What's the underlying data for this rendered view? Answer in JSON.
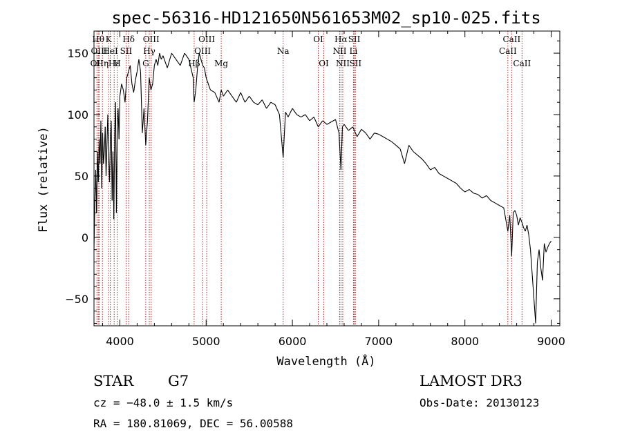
{
  "chart_data": {
    "type": "line",
    "title": "spec-56316-HD121650N561653M02_sp10-025.fits",
    "xlabel": "Wavelength (Å)",
    "ylabel": "Flux (relative)",
    "xlim": [
      3700,
      9100
    ],
    "ylim": [
      -72,
      168
    ],
    "x_ticks": [
      4000,
      5000,
      6000,
      7000,
      8000,
      9000
    ],
    "x_tick_labels": [
      "4000",
      "5000",
      "6000",
      "7000",
      "8000",
      "9000"
    ],
    "y_ticks": [
      -50,
      0,
      50,
      100,
      150
    ],
    "y_tick_labels": [
      "−50",
      "0",
      "50",
      "100",
      "150"
    ],
    "grid": false,
    "line_color": "#000000",
    "marker_color": "#b22222",
    "series": [
      {
        "x": [
          3700,
          3710,
          3720,
          3730,
          3740,
          3750,
          3760,
          3770,
          3780,
          3790,
          3800,
          3810,
          3820,
          3830,
          3840,
          3850,
          3860,
          3870,
          3880,
          3890,
          3900,
          3910,
          3920,
          3930,
          3940,
          3950,
          3960,
          3970,
          3980,
          3990,
          4000,
          4020,
          4040,
          4060,
          4080,
          4100,
          4120,
          4140,
          4160,
          4180,
          4200,
          4220,
          4240,
          4260,
          4280,
          4300,
          4320,
          4340,
          4360,
          4380,
          4400,
          4420,
          4440,
          4460,
          4480,
          4500,
          4550,
          4600,
          4650,
          4700,
          4750,
          4800,
          4850,
          4861,
          4880,
          4900,
          4920,
          4940,
          4960,
          4980,
          5000,
          5050,
          5100,
          5150,
          5175,
          5200,
          5250,
          5300,
          5350,
          5400,
          5450,
          5500,
          5550,
          5600,
          5650,
          5700,
          5750,
          5800,
          5850,
          5893,
          5920,
          5950,
          6000,
          6050,
          6100,
          6150,
          6200,
          6250,
          6300,
          6350,
          6400,
          6450,
          6500,
          6540,
          6563,
          6580,
          6600,
          6650,
          6700,
          6750,
          6800,
          6850,
          6900,
          6950,
          7000,
          7050,
          7100,
          7150,
          7200,
          7250,
          7300,
          7350,
          7400,
          7450,
          7500,
          7550,
          7600,
          7650,
          7700,
          7750,
          7800,
          7850,
          7900,
          7950,
          8000,
          8050,
          8100,
          8150,
          8200,
          8250,
          8300,
          8350,
          8400,
          8450,
          8498,
          8520,
          8542,
          8560,
          8580,
          8600,
          8620,
          8640,
          8662,
          8680,
          8700,
          8720,
          8740,
          8760,
          8780,
          8800,
          8820,
          8840,
          8860,
          8880,
          8900,
          8920,
          8940,
          8960,
          8980,
          9000
        ],
        "y": [
          -10,
          30,
          55,
          20,
          70,
          45,
          80,
          60,
          95,
          40,
          85,
          60,
          70,
          90,
          50,
          75,
          100,
          65,
          45,
          80,
          95,
          30,
          70,
          15,
          85,
          110,
          20,
          90,
          105,
          80,
          115,
          125,
          120,
          110,
          130,
          135,
          140,
          125,
          118,
          128,
          135,
          145,
          135,
          85,
          105,
          75,
          95,
          130,
          120,
          125,
          140,
          145,
          140,
          150,
          145,
          148,
          138,
          150,
          145,
          140,
          150,
          145,
          130,
          110,
          120,
          138,
          150,
          145,
          140,
          138,
          130,
          120,
          118,
          110,
          120,
          115,
          120,
          115,
          110,
          118,
          110,
          115,
          110,
          108,
          112,
          105,
          110,
          108,
          100,
          65,
          102,
          98,
          105,
          100,
          98,
          100,
          95,
          98,
          90,
          95,
          92,
          94,
          96,
          85,
          55,
          90,
          92,
          87,
          90,
          82,
          88,
          85,
          80,
          85,
          84,
          82,
          80,
          78,
          75,
          72,
          60,
          75,
          70,
          67,
          64,
          60,
          55,
          57,
          52,
          50,
          48,
          46,
          44,
          40,
          37,
          39,
          36,
          35,
          32,
          34,
          30,
          28,
          26,
          24,
          5,
          18,
          -15,
          20,
          22,
          18,
          10,
          16,
          12,
          8,
          5,
          10,
          2,
          -10,
          -30,
          -50,
          -70,
          -20,
          -10,
          -25,
          -35,
          -5,
          -12,
          -8,
          -5,
          -3
        ]
      }
    ],
    "line_markers": [
      {
        "x": 3734,
        "label": "OII",
        "row": 3
      },
      {
        "x": 3750,
        "label": "Hθ",
        "row": 1
      },
      {
        "x": 3760,
        "label": "OIII",
        "row": 2
      },
      {
        "x": 3798,
        "label": "Hη",
        "row": 3
      },
      {
        "x": 3869,
        "label": "K",
        "row": 1
      },
      {
        "x": 3889,
        "label": "HeI",
        "row": 2
      },
      {
        "x": 3934,
        "label": "Hε",
        "row": 3
      },
      {
        "x": 3969,
        "label": "H",
        "row": 3
      },
      {
        "x": 4072,
        "label": "SII",
        "row": 2
      },
      {
        "x": 4102,
        "label": "Hδ",
        "row": 1
      },
      {
        "x": 4300,
        "label": "G",
        "row": 3
      },
      {
        "x": 4341,
        "label": "Hγ",
        "row": 2
      },
      {
        "x": 4363,
        "label": "OIII",
        "row": 1
      },
      {
        "x": 4861,
        "label": "Hβ",
        "row": 3
      },
      {
        "x": 4959,
        "label": "OIII",
        "row": 2
      },
      {
        "x": 5007,
        "label": "OIII",
        "row": 1
      },
      {
        "x": 5175,
        "label": "Mg",
        "row": 3
      },
      {
        "x": 5893,
        "label": "Na",
        "row": 2
      },
      {
        "x": 6300,
        "label": "OI",
        "row": 1
      },
      {
        "x": 6364,
        "label": "OI",
        "row": 3
      },
      {
        "x": 6548,
        "label": "NII",
        "row": 2
      },
      {
        "x": 6563,
        "label": "Hα",
        "row": 1
      },
      {
        "x": 6584,
        "label": "NII",
        "row": 3
      },
      {
        "x": 6708,
        "label": "Li",
        "row": 2
      },
      {
        "x": 6717,
        "label": "SII",
        "row": 1
      },
      {
        "x": 6731,
        "label": "SII",
        "row": 3
      },
      {
        "x": 8498,
        "label": "CaII",
        "row": 2
      },
      {
        "x": 8542,
        "label": "CaII",
        "row": 1
      },
      {
        "x": 8662,
        "label": "CaII",
        "row": 3
      }
    ]
  },
  "info": {
    "object_class": "STAR",
    "subclass": "G7",
    "survey": "LAMOST DR3",
    "cz": "cz = −48.0 ± 1.5 km/s",
    "obs_date": "Obs-Date: 20130123",
    "coords": "RA = 180.81069, DEC =  56.00588"
  }
}
